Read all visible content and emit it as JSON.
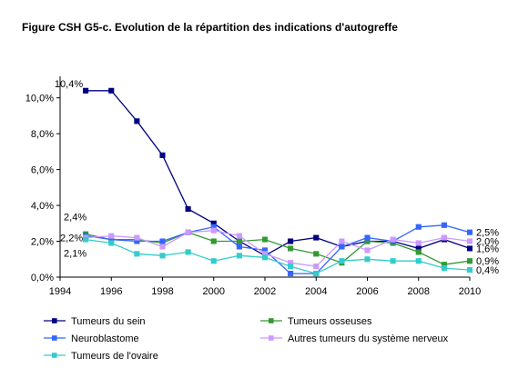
{
  "title": "Figure CSH G5-c. Evolution de la répartition des indications d'autogreffe",
  "chart_data": {
    "type": "line",
    "title": "Figure CSH G5-c. Evolution de la répartition des indications d'autogreffe",
    "xlabel": "",
    "ylabel": "",
    "xlim": [
      1994,
      2010
    ],
    "ylim": [
      0,
      11.2
    ],
    "x_ticks": [
      "1994",
      "1996",
      "1998",
      "2000",
      "2002",
      "2004",
      "2006",
      "2008",
      "2010"
    ],
    "y_ticks": [
      "0,0%",
      "2,0%",
      "4,0%",
      "6,0%",
      "8,0%",
      "10,0%"
    ],
    "grid": false,
    "legend_position": "bottom",
    "x": [
      1995,
      1996,
      1997,
      1998,
      1999,
      2000,
      2001,
      2002,
      2003,
      2004,
      2005,
      2006,
      2007,
      2008,
      2009,
      2010
    ],
    "series": [
      {
        "name": "Tumeurs du sein",
        "color": "#000080",
        "marker": "square",
        "values": [
          10.4,
          10.4,
          8.7,
          6.8,
          3.8,
          3.0,
          2.0,
          1.2,
          2.0,
          2.2,
          1.7,
          2.0,
          2.0,
          1.6,
          2.1,
          1.6
        ]
      },
      {
        "name": "Tumeurs osseuses",
        "color": "#339933",
        "marker": "square",
        "values": [
          2.4,
          2.1,
          2.1,
          1.9,
          2.5,
          2.0,
          2.0,
          2.1,
          1.6,
          1.3,
          0.8,
          2.0,
          1.9,
          1.4,
          0.7,
          0.9
        ]
      },
      {
        "name": "Neuroblastome",
        "color": "#3366ff",
        "marker": "square",
        "values": [
          2.3,
          2.1,
          2.0,
          2.0,
          2.5,
          2.8,
          1.7,
          1.5,
          0.2,
          0.2,
          1.7,
          2.2,
          2.0,
          2.8,
          2.9,
          2.5
        ]
      },
      {
        "name": "Autres tumeurs du système nerveux",
        "color": "#cc99ff",
        "marker": "square",
        "values": [
          2.2,
          2.3,
          2.2,
          1.7,
          2.5,
          2.6,
          2.3,
          1.3,
          0.8,
          0.6,
          2.0,
          1.5,
          2.1,
          1.9,
          2.2,
          2.0
        ]
      },
      {
        "name": "Tumeurs de l'ovaire",
        "color": "#33cccc",
        "marker": "square",
        "values": [
          2.1,
          1.9,
          1.3,
          1.2,
          1.4,
          0.9,
          1.2,
          1.1,
          0.6,
          0.2,
          0.9,
          1.0,
          0.9,
          0.9,
          0.5,
          0.4
        ]
      }
    ],
    "annotations": [
      {
        "text": "10,4%",
        "x": 1995,
        "y": 10.4,
        "side": "left-above"
      },
      {
        "text": "2,4%",
        "x": 1995,
        "y": 2.4,
        "side": "left-high"
      },
      {
        "text": "2,2%",
        "x": 1995,
        "y": 2.2,
        "side": "left"
      },
      {
        "text": "2,1%",
        "x": 1995,
        "y": 2.1,
        "side": "left-low"
      },
      {
        "text": "2,5%",
        "x": 2010,
        "y": 2.5,
        "side": "right"
      },
      {
        "text": "2,0%",
        "x": 2010,
        "y": 2.0,
        "side": "right"
      },
      {
        "text": "1,6%",
        "x": 2010,
        "y": 1.6,
        "side": "right"
      },
      {
        "text": "0,9%",
        "x": 2010,
        "y": 0.9,
        "side": "right"
      },
      {
        "text": "0,4%",
        "x": 2010,
        "y": 0.4,
        "side": "right"
      }
    ]
  }
}
